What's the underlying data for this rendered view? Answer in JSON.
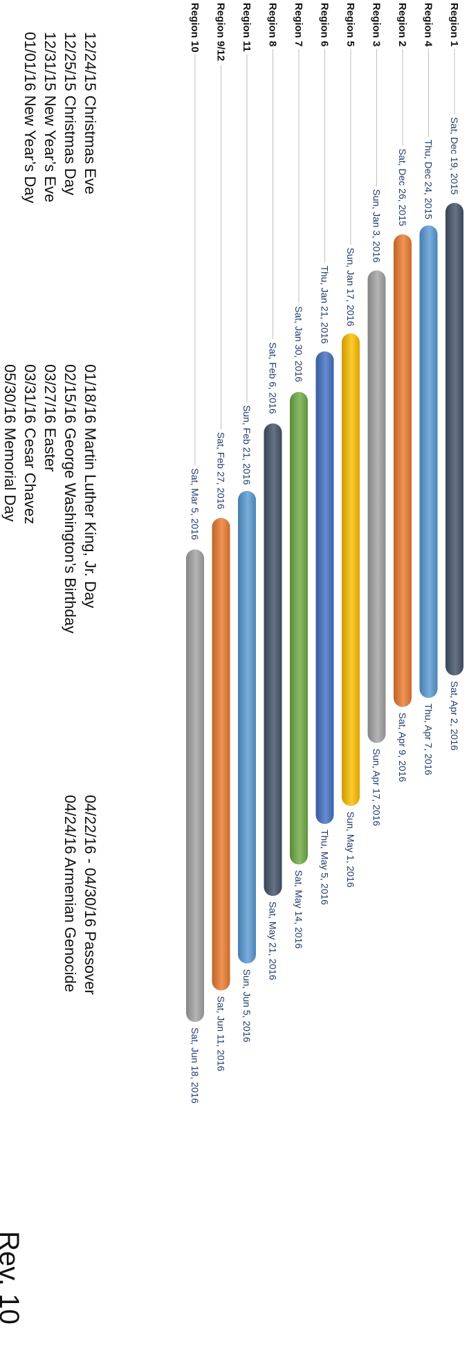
{
  "chart_data": {
    "type": "gantt",
    "date_axis": "time",
    "rows": [
      {
        "label": "Region 1",
        "start": "2015-12-19",
        "end": "2016-04-02",
        "start_label": "Sat, Dec 19, 2015",
        "end_label": "Sat, Apr 2, 2016",
        "color": "#44546a"
      },
      {
        "label": "Region 4",
        "start": "2015-12-24",
        "end": "2016-04-07",
        "start_label": "Thu, Dec 24, 2015",
        "end_label": "Thu, Apr 7, 2016",
        "color": "#5b9bd5"
      },
      {
        "label": "Region 2",
        "start": "2015-12-26",
        "end": "2016-04-09",
        "start_label": "Sat, Dec 26, 2015",
        "end_label": "Sat, Apr 9, 2016",
        "color": "#ed7d31"
      },
      {
        "label": "Region 3",
        "start": "2016-01-03",
        "end": "2016-04-17",
        "start_label": "Sun, Jan 3, 2016",
        "end_label": "Sun, Apr 17, 2016",
        "color": "#a5a5a5"
      },
      {
        "label": "Region 5",
        "start": "2016-01-17",
        "end": "2016-05-01",
        "start_label": "Sun, Jan 17, 2016",
        "end_label": "Sun, May 1, 2016",
        "color": "#ffc000"
      },
      {
        "label": "Region 6",
        "start": "2016-01-21",
        "end": "2016-05-05",
        "start_label": "Thu, Jan 21, 2016",
        "end_label": "Thu, May 5, 2016",
        "color": "#4472c4"
      },
      {
        "label": "Region 7",
        "start": "2016-01-30",
        "end": "2016-05-14",
        "start_label": "Sat, Jan 30, 2016",
        "end_label": "Sat, May 14, 2016",
        "color": "#70ad47"
      },
      {
        "label": "Region 8",
        "start": "2016-02-06",
        "end": "2016-05-21",
        "start_label": "Sat, Feb 6, 2016",
        "end_label": "Sat, May 21, 2016",
        "color": "#44546a"
      },
      {
        "label": "Region 11",
        "start": "2016-02-21",
        "end": "2016-06-05",
        "start_label": "Sun, Feb 21, 2016",
        "end_label": "Sun, Jun 5, 2016",
        "color": "#5b9bd5"
      },
      {
        "label": "Region 9/12",
        "start": "2016-02-27",
        "end": "2016-06-11",
        "start_label": "Sat, Feb 27, 2016",
        "end_label": "Sat, Jun 11, 2016",
        "color": "#ed7d31"
      },
      {
        "label": "Region 10",
        "start": "2016-03-05",
        "end": "2016-06-18",
        "start_label": "Sat, Mar 5, 2016",
        "end_label": "Sat, Jun 18, 2016",
        "color": "#a5a5a5"
      }
    ]
  },
  "holidays": {
    "col1": [
      "12/24/15 Christmas Eve",
      "12/25/15 Christmas Day",
      "12/31/15 New Year’s Eve",
      "01/01/16 New Year’s Day"
    ],
    "col2": [
      "01/18/16 Martin Luther King, Jr. Day",
      "02/15/16 George Washington’s Birthday",
      "03/27/16 Easter",
      "03/31/16 Cesar Chavez",
      "05/30/16 Memorial Day"
    ],
    "col3": [
      "04/22/16 - 04/30/16 Passover",
      "04/24/16 Armenian Genocide"
    ]
  },
  "revision": "Rev. 10"
}
